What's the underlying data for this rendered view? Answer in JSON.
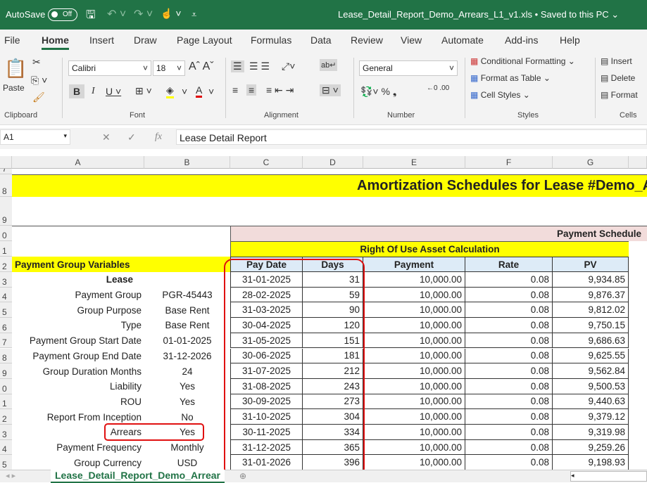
{
  "titlebar": {
    "autosave": "AutoSave",
    "toggle": "Off",
    "filename": "Lease_Detail_Report_Demo_Arrears_L1_v1.xls • Saved to this PC ⌄"
  },
  "menu": [
    "File",
    "Home",
    "Insert",
    "Draw",
    "Page Layout",
    "Formulas",
    "Data",
    "Review",
    "View",
    "Automate",
    "Add-ins",
    "Help"
  ],
  "ribbon": {
    "paste": "Paste",
    "font_name": "Calibri",
    "font_size": "18",
    "number_format": "General",
    "conditional": "Conditional Formatting ⌄",
    "format_table": "Format as Table ⌄",
    "cell_styles": "Cell Styles ⌄",
    "insert": "Insert",
    "delete": "Delete",
    "format": "Format",
    "groups": [
      "Clipboard",
      "Font",
      "Alignment",
      "Number",
      "Styles",
      "Cells"
    ]
  },
  "formula_bar": {
    "name_box": "A1",
    "formula": "Lease Detail Report"
  },
  "columns": [
    "A",
    "B",
    "C",
    "D",
    "E",
    "F",
    "G"
  ],
  "sheet": {
    "title": "Amortization Schedules for Lease #Demo_A",
    "payment_schedule": "Payment Schedule",
    "rou_header": "Right Of Use Asset Calculation",
    "variables_header": "Payment Group Variables",
    "table_headers": [
      "Pay Date",
      "Days",
      "Payment",
      "Rate",
      "PV"
    ],
    "variables": [
      [
        "Lease",
        ""
      ],
      [
        "Payment Group",
        "PGR-45443"
      ],
      [
        "Group Purpose",
        "Base Rent"
      ],
      [
        "Type",
        "Base Rent"
      ],
      [
        "Payment Group Start Date",
        "01-01-2025"
      ],
      [
        "Payment Group End Date",
        "31-12-2026"
      ],
      [
        "Group Duration Months",
        "24"
      ],
      [
        "Liability",
        "Yes"
      ],
      [
        "ROU",
        "Yes"
      ],
      [
        "Report From Inception",
        "No"
      ],
      [
        "Arrears",
        "Yes"
      ],
      [
        "Payment Frequency",
        "Monthly"
      ],
      [
        "Group Currency",
        "USD"
      ]
    ],
    "rows": [
      [
        "31-01-2025",
        "31",
        "10,000.00",
        "0.08",
        "9,934.85"
      ],
      [
        "28-02-2025",
        "59",
        "10,000.00",
        "0.08",
        "9,876.37"
      ],
      [
        "31-03-2025",
        "90",
        "10,000.00",
        "0.08",
        "9,812.02"
      ],
      [
        "30-04-2025",
        "120",
        "10,000.00",
        "0.08",
        "9,750.15"
      ],
      [
        "31-05-2025",
        "151",
        "10,000.00",
        "0.08",
        "9,686.63"
      ],
      [
        "30-06-2025",
        "181",
        "10,000.00",
        "0.08",
        "9,625.55"
      ],
      [
        "31-07-2025",
        "212",
        "10,000.00",
        "0.08",
        "9,562.84"
      ],
      [
        "31-08-2025",
        "243",
        "10,000.00",
        "0.08",
        "9,500.53"
      ],
      [
        "30-09-2025",
        "273",
        "10,000.00",
        "0.08",
        "9,440.63"
      ],
      [
        "31-10-2025",
        "304",
        "10,000.00",
        "0.08",
        "9,379.12"
      ],
      [
        "30-11-2025",
        "334",
        "10,000.00",
        "0.08",
        "9,319.98"
      ],
      [
        "31-12-2025",
        "365",
        "10,000.00",
        "0.08",
        "9,259.26"
      ],
      [
        "31-01-2026",
        "396",
        "10,000.00",
        "0.08",
        "9,198.93"
      ]
    ],
    "row_labels": [
      "7",
      "8",
      "9",
      "0",
      "1",
      "2",
      "3",
      "4",
      "5",
      "6",
      "7",
      "8",
      "9",
      "0",
      "1",
      "2",
      "3",
      "4",
      "5"
    ]
  },
  "sheet_tab": "Lease_Detail_Report_Demo_Arrear",
  "colors": {
    "excel_green": "#217346",
    "yellow": "#ffff00",
    "pink": "#f2dcdb",
    "light_blue": "#ddebf7",
    "highlight_red": "#e01010"
  }
}
